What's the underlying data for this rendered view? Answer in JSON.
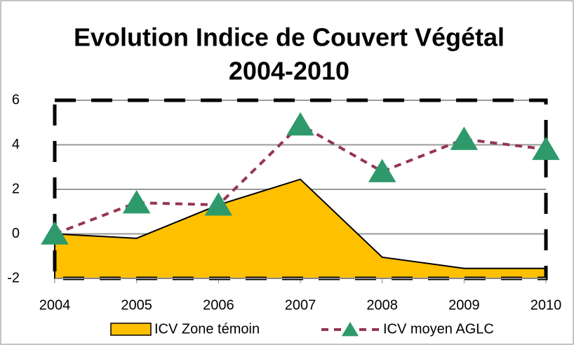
{
  "chart_data": {
    "type": "line",
    "title": [
      "Evolution Indice de Couvert Végétal",
      "2004-2010"
    ],
    "categories": [
      "2004",
      "2005",
      "2006",
      "2007",
      "2008",
      "2009",
      "2010"
    ],
    "series": [
      {
        "name": "ICV Zone témoin",
        "kind": "area",
        "color": "#ffc000",
        "values": [
          0,
          -0.2,
          1.3,
          2.45,
          -1.05,
          -1.55,
          -1.55
        ]
      },
      {
        "name": "ICV moyen AGLC",
        "kind": "line",
        "color": "#953553",
        "marker_color": "#2e9a6b",
        "values": [
          0,
          1.4,
          1.3,
          4.9,
          2.8,
          4.25,
          3.8
        ]
      }
    ],
    "ylim": [
      -2,
      6
    ],
    "yticks": [
      -2,
      0,
      2,
      4,
      6
    ],
    "grid": true,
    "legend": "bottom"
  }
}
